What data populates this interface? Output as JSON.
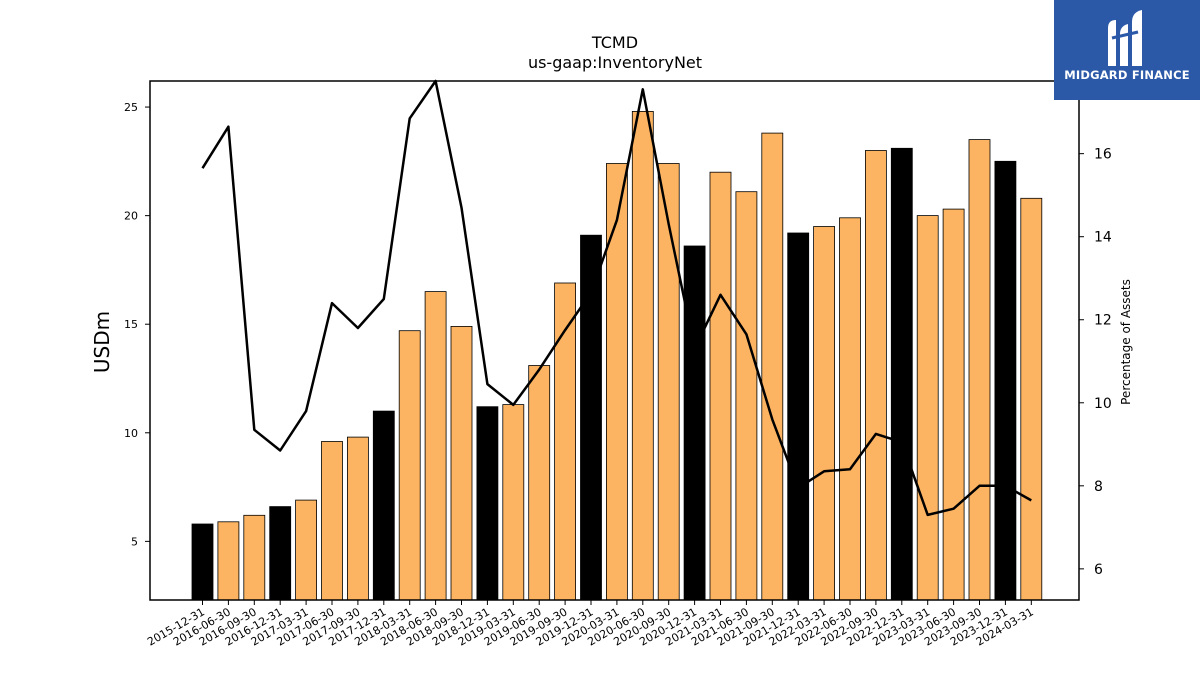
{
  "brand": {
    "name": "MIDGARD FINANCE",
    "logo_icon": "midgard-logo-icon",
    "color": "#2b59a8"
  },
  "chart_data": {
    "type": "bar",
    "title": "TCMD",
    "subtitle": "us-gaap:InventoryNet",
    "ylabel": "USDm",
    "y2label": "Percentage of Assets",
    "ylim": [
      2.3,
      26.2
    ],
    "y2lim": [
      5.25,
      17.75
    ],
    "yticks": [
      5,
      10,
      15,
      20,
      25
    ],
    "y2ticks": [
      6,
      8,
      10,
      12,
      14,
      16
    ],
    "categories": [
      "2015-12-31",
      "2016-06-30",
      "2016-09-30",
      "2016-12-31",
      "2017-03-31",
      "2017-06-30",
      "2017-09-30",
      "2017-12-31",
      "2018-03-31",
      "2018-06-30",
      "2018-09-30",
      "2018-12-31",
      "2019-03-31",
      "2019-06-30",
      "2019-09-30",
      "2019-12-31",
      "2020-03-31",
      "2020-06-30",
      "2020-09-30",
      "2020-12-31",
      "2021-03-31",
      "2021-06-30",
      "2021-09-30",
      "2021-12-31",
      "2022-03-31",
      "2022-06-30",
      "2022-09-30",
      "2022-12-31",
      "2023-03-31",
      "2023-06-30",
      "2023-09-30",
      "2023-12-31",
      "2024-03-31"
    ],
    "series": [
      {
        "name": "",
        "axis": "left",
        "kind": "bar",
        "values": [
          5.8,
          5.9,
          6.2,
          6.6,
          6.9,
          9.6,
          9.8,
          11.0,
          14.7,
          16.5,
          14.9,
          11.2,
          11.3,
          13.1,
          16.9,
          19.1,
          22.4,
          24.8,
          22.4,
          18.6,
          22.0,
          21.1,
          23.8,
          19.2,
          19.5,
          19.9,
          23.0,
          23.1,
          20.0,
          20.3,
          23.5,
          22.5,
          20.8
        ]
      },
      {
        "name": "",
        "axis": "right",
        "kind": "line",
        "values": [
          15.65,
          16.65,
          9.35,
          8.85,
          9.8,
          12.4,
          11.8,
          12.5,
          16.85,
          17.75,
          14.7,
          10.45,
          9.95,
          10.8,
          11.75,
          12.65,
          14.4,
          17.55,
          14.3,
          11.3,
          12.6,
          11.65,
          9.6,
          7.95,
          8.35,
          8.4,
          9.25,
          9.05,
          7.3,
          7.45,
          8.0,
          8.0,
          7.65
        ]
      }
    ],
    "year_end_color": "#000000",
    "other_color": "#fdb462",
    "line_color": "#000000"
  }
}
